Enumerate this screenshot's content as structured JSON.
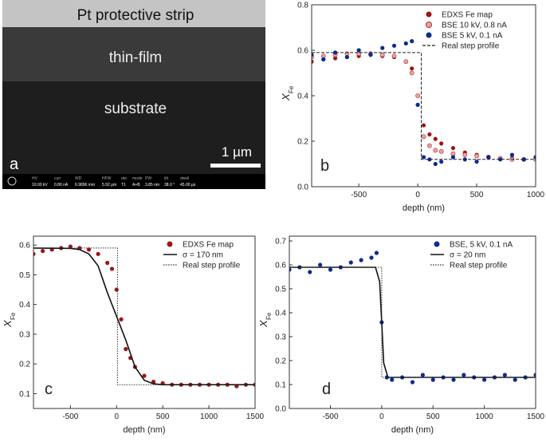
{
  "image": {
    "layers": [
      "Pt protective strip",
      "thin-film",
      "substrate"
    ],
    "scale_bar": "1 µm",
    "letter": "a",
    "info": [
      {
        "key": "HV",
        "val": "10.00 kV"
      },
      {
        "key": "curr",
        "val": "0.80 nA"
      },
      {
        "key": "WD",
        "val": "6.9896 mm"
      },
      {
        "key": "HFW",
        "val": "5.92 µm"
      },
      {
        "key": "det",
        "val": "T1"
      },
      {
        "key": "mode",
        "val": "A+B"
      },
      {
        "key": "PW",
        "val": "3.85 nm"
      },
      {
        "key": "tilt",
        "val": "38.0 °"
      },
      {
        "key": "dwell",
        "val": "45.00 µs"
      }
    ]
  },
  "chart_data": [
    {
      "type": "scatter",
      "letter": "b",
      "xlabel": "depth (nm)",
      "ylabel": {
        "main": "X",
        "sub": "Fe"
      },
      "xlim": [
        -900,
        1000
      ],
      "ylim": [
        0,
        0.8
      ],
      "xticks": [
        -500,
        0,
        500,
        1000
      ],
      "yticks": [
        {
          "value": 0,
          "label": "0.0"
        },
        0.2,
        0.4,
        0.6,
        0.8
      ],
      "legend": "upper right",
      "series": [
        {
          "name": "EDXS Fe map",
          "style": "points",
          "color": "#a01414",
          "x": [
            -900,
            -800,
            -700,
            -600,
            -500,
            -400,
            -300,
            -200,
            -100,
            -50,
            0,
            50,
            100,
            150,
            200,
            300,
            400,
            500,
            600,
            700,
            800,
            900,
            1000
          ],
          "values": [
            0.55,
            0.56,
            0.565,
            0.57,
            0.575,
            0.58,
            0.575,
            0.57,
            0.55,
            0.52,
            0.4,
            0.27,
            0.23,
            0.21,
            0.19,
            0.17,
            0.15,
            0.14,
            0.13,
            0.125,
            0.125,
            0.12,
            0.12
          ]
        },
        {
          "name": "BSE 10 kV, 0.8 nA",
          "style": "points",
          "color": "#e8a4a4",
          "x": [
            -900,
            -800,
            -700,
            -600,
            -500,
            -400,
            -300,
            -200,
            -100,
            -50,
            0,
            50,
            100,
            150,
            200,
            300,
            400,
            500,
            600,
            700,
            800,
            900,
            1000
          ],
          "values": [
            0.57,
            0.575,
            0.58,
            0.585,
            0.585,
            0.585,
            0.58,
            0.575,
            0.55,
            0.5,
            0.4,
            0.22,
            0.18,
            0.16,
            0.155,
            0.145,
            0.14,
            0.135,
            0.13,
            0.125,
            0.12,
            0.12,
            0.12
          ]
        },
        {
          "name": "BSE 5 kV, 0.1 nA",
          "style": "points",
          "color": "#0c2a96",
          "x": [
            -900,
            -800,
            -700,
            -600,
            -500,
            -400,
            -300,
            -200,
            -100,
            -50,
            0,
            50,
            100,
            150,
            200,
            300,
            400,
            500,
            600,
            700,
            800,
            900,
            1000
          ],
          "values": [
            0.58,
            0.56,
            0.59,
            0.57,
            0.6,
            0.58,
            0.61,
            0.62,
            0.63,
            0.64,
            0.36,
            0.13,
            0.12,
            0.1,
            0.11,
            0.13,
            0.12,
            0.11,
            0.13,
            0.12,
            0.14,
            0.12,
            0.13
          ]
        },
        {
          "name": "Real step profile",
          "style": "dashed",
          "color": "#222222",
          "x": [
            -900,
            30,
            30,
            1000
          ],
          "values": [
            0.59,
            0.59,
            0.12,
            0.12
          ]
        }
      ]
    },
    {
      "type": "scatter",
      "letter": "c",
      "xlabel": "depth (nm)",
      "ylabel": {
        "main": "X",
        "sub": "Fe"
      },
      "xlim": [
        -900,
        1500
      ],
      "ylim": [
        0.05,
        0.63
      ],
      "xticks": [
        -500,
        0,
        500,
        1000,
        1500
      ],
      "yticks": [
        0.1,
        0.2,
        0.3,
        0.4,
        0.5,
        0.6
      ],
      "legend": "upper right",
      "series": [
        {
          "name": "EDXS Fe map",
          "style": "points",
          "color": "#a01414",
          "x": [
            -900,
            -800,
            -700,
            -600,
            -500,
            -400,
            -300,
            -200,
            -100,
            -50,
            0,
            50,
            100,
            150,
            200,
            300,
            400,
            500,
            600,
            700,
            800,
            900,
            1000,
            1100,
            1200,
            1300,
            1400,
            1500
          ],
          "values": [
            0.57,
            0.58,
            0.585,
            0.59,
            0.595,
            0.59,
            0.585,
            0.57,
            0.54,
            0.52,
            0.45,
            0.35,
            0.25,
            0.22,
            0.19,
            0.16,
            0.14,
            0.135,
            0.13,
            0.13,
            0.13,
            0.13,
            0.13,
            0.13,
            0.13,
            0.125,
            0.13,
            0.13
          ]
        },
        {
          "name": "σ = 170 nm",
          "style": "solid",
          "color": "#111111",
          "x": [
            -900,
            -500,
            -400,
            -300,
            -200,
            -100,
            0,
            100,
            200,
            300,
            400,
            500,
            1500
          ],
          "values": [
            0.59,
            0.589,
            0.585,
            0.57,
            0.53,
            0.44,
            0.36,
            0.28,
            0.19,
            0.145,
            0.133,
            0.13,
            0.13
          ]
        },
        {
          "name": "Real step profile",
          "style": "dotted",
          "color": "#333333",
          "x": [
            -900,
            10,
            10,
            1500
          ],
          "values": [
            0.59,
            0.59,
            0.13,
            0.13
          ]
        }
      ]
    },
    {
      "type": "scatter",
      "letter": "d",
      "xlabel": "depth (nm)",
      "ylabel": {
        "main": "X",
        "sub": "Fe"
      },
      "xlim": [
        -900,
        1500
      ],
      "ylim": [
        0,
        0.72
      ],
      "xticks": [
        -500,
        0,
        500,
        1000,
        1500
      ],
      "yticks": [
        {
          "value": 0,
          "label": "0.0"
        },
        0.1,
        0.2,
        0.3,
        0.4,
        0.5,
        0.6,
        0.7
      ],
      "legend": "upper right",
      "series": [
        {
          "name": "BSE, 5 kV, 0.1 nA",
          "style": "points",
          "color": "#0c2a96",
          "x": [
            -900,
            -800,
            -700,
            -600,
            -500,
            -400,
            -300,
            -200,
            -100,
            -50,
            0,
            50,
            100,
            200,
            300,
            400,
            500,
            600,
            700,
            800,
            900,
            1000,
            1100,
            1200,
            1300,
            1400,
            1500
          ],
          "values": [
            0.58,
            0.59,
            0.57,
            0.6,
            0.58,
            0.59,
            0.61,
            0.62,
            0.63,
            0.65,
            0.36,
            0.13,
            0.12,
            0.13,
            0.11,
            0.14,
            0.12,
            0.13,
            0.12,
            0.14,
            0.13,
            0.12,
            0.13,
            0.14,
            0.12,
            0.13,
            0.14
          ]
        },
        {
          "name": "σ = 20 nm",
          "style": "solid",
          "color": "#111111",
          "x": [
            -900,
            -60,
            -20,
            0,
            20,
            60,
            1500
          ],
          "values": [
            0.59,
            0.59,
            0.53,
            0.36,
            0.19,
            0.13,
            0.13
          ]
        },
        {
          "name": "Real step profile",
          "style": "dotted",
          "color": "#333333",
          "x": [
            -900,
            0,
            0,
            1500
          ],
          "values": [
            0.59,
            0.59,
            0.13,
            0.13
          ]
        }
      ]
    }
  ]
}
